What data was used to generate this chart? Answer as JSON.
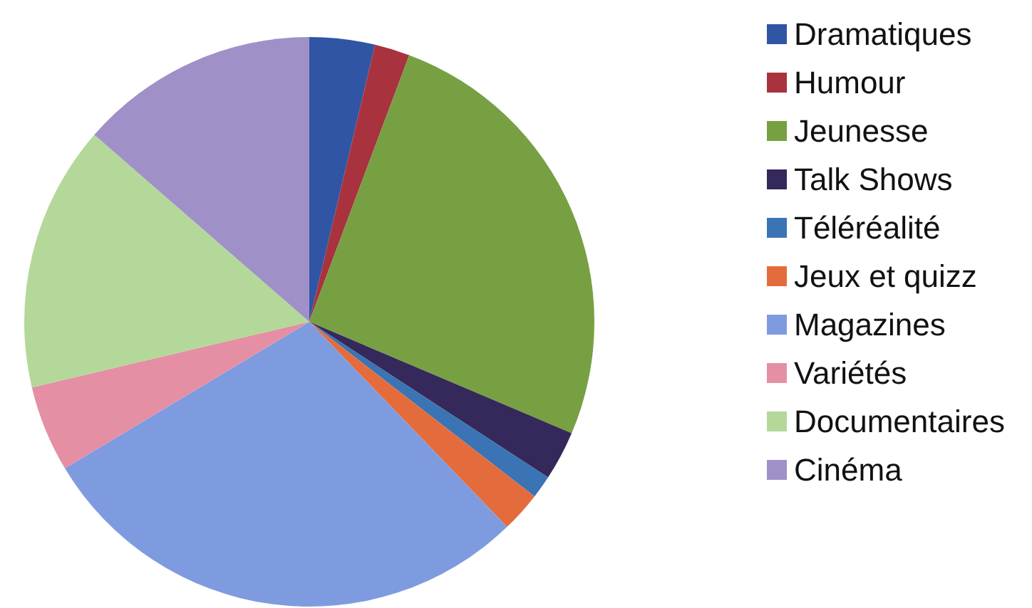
{
  "chart_data": {
    "type": "pie",
    "categories": [
      "Dramatiques",
      "Humour",
      "Jeunesse",
      "Talk Shows",
      "Téléréalité",
      "Jeux et quizz",
      "Magazines",
      "Variétés",
      "Documentaires",
      "Cinéma"
    ],
    "values": [
      3.7,
      2,
      25.7,
      2.8,
      1.3,
      2.3,
      28.6,
      4.9,
      15.1,
      13.6
    ],
    "colors": [
      "#2f55a4",
      "#a8333f",
      "#77a043",
      "#35285a",
      "#3a74b4",
      "#e46c3c",
      "#7f9be0",
      "#e48fa4",
      "#b4d89a",
      "#a090c8"
    ],
    "legend": "right"
  }
}
